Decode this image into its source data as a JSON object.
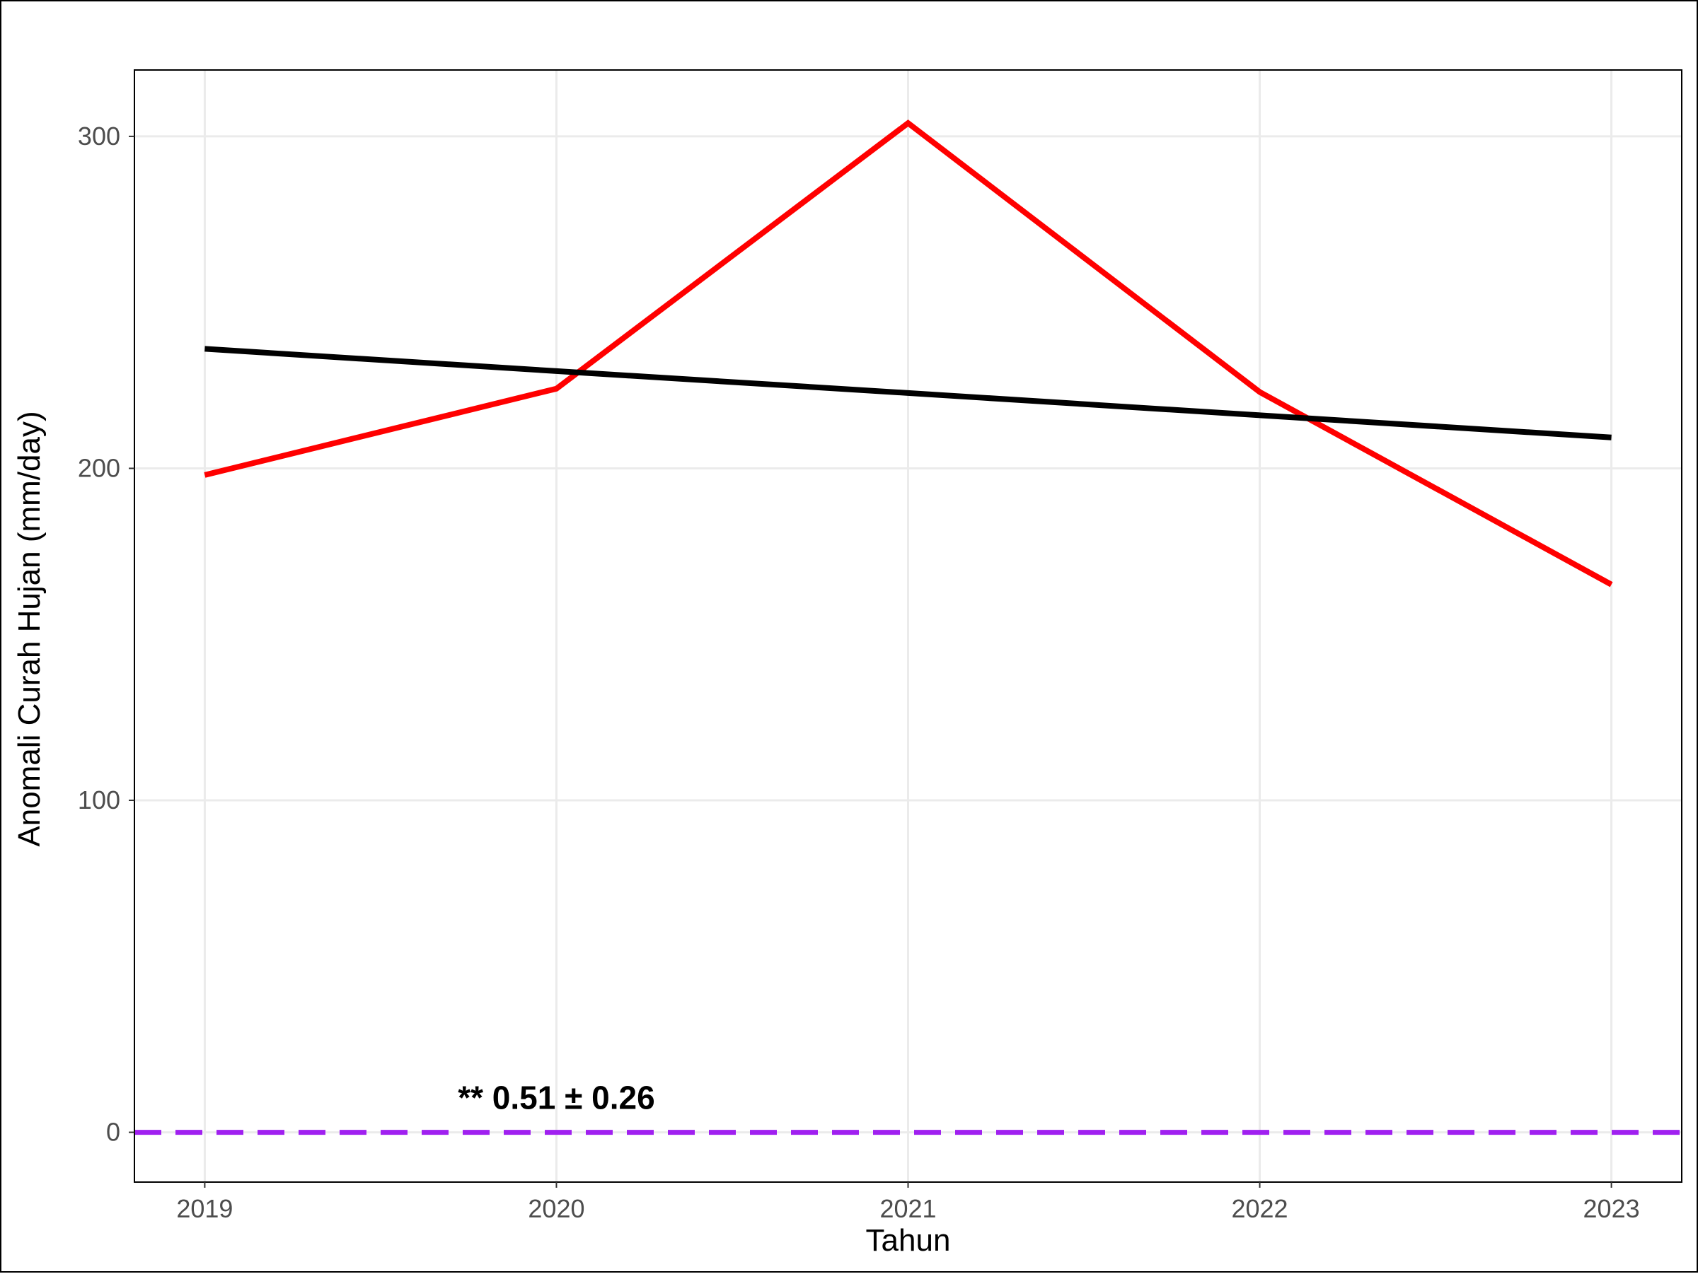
{
  "chart_data": {
    "type": "line",
    "xlabel": "Tahun",
    "ylabel": "Anomali Curah Hujan (mm/day)",
    "x": [
      2019,
      2020,
      2021,
      2022,
      2023
    ],
    "x_ticks": [
      "2019",
      "2020",
      "2021",
      "2022",
      "2023"
    ],
    "xlim": [
      2018.8,
      2023.2
    ],
    "y_ticks": [
      "0",
      "100",
      "200",
      "300"
    ],
    "ylim": [
      -15,
      320
    ],
    "grid": true,
    "legend": "none",
    "series": [
      {
        "values": [
          198,
          224,
          304,
          223,
          165
        ],
        "color": "#ff0000",
        "style": "solid"
      },
      {
        "values": [
          236,
          229.3,
          222.7,
          216,
          209.3
        ],
        "color": "#000000",
        "style": "solid"
      }
    ],
    "reference_line": {
      "y": 0,
      "color": "#a020f0",
      "style": "dashed"
    },
    "annotations": [
      {
        "text": "** 0.51 ± 0.26",
        "x": 2020.0,
        "y": 7
      }
    ]
  }
}
